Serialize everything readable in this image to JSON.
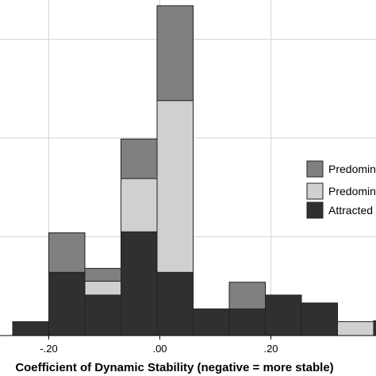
{
  "chart_data": {
    "type": "bar",
    "stacked": true,
    "xlabel": "Coefficient of Dynamic Stability (negative = more stable)",
    "x_tick_labels": [
      "-.20",
      ".00",
      ".20"
    ],
    "x_tick_values": [
      -0.2,
      0.0,
      0.2
    ],
    "xlim": [
      -0.265,
      0.275
    ],
    "ylim": [
      0,
      34
    ],
    "grid": true,
    "bin_width": 0.065,
    "bin_start": -0.265,
    "series": [
      {
        "name": "Predominantly ...",
        "color": "#808080",
        "values": [
          0,
          4,
          1.3,
          4,
          9.6,
          0,
          2.7,
          0,
          0,
          0,
          0
        ]
      },
      {
        "name": "Predominantly ...",
        "color": "#d0d0d0",
        "values": [
          0,
          0,
          1.4,
          5.4,
          17.4,
          0,
          0,
          0,
          0,
          1.4,
          0
        ]
      },
      {
        "name": "Attracted ...",
        "color": "#303030",
        "values": [
          1.4,
          6.4,
          4.1,
          10.5,
          6.4,
          2.7,
          2.7,
          4.1,
          3.3,
          0,
          1.5
        ]
      }
    ],
    "legend": {
      "placement": "right",
      "entries": [
        "Predomin",
        "Predomin",
        "Attracted"
      ]
    }
  }
}
